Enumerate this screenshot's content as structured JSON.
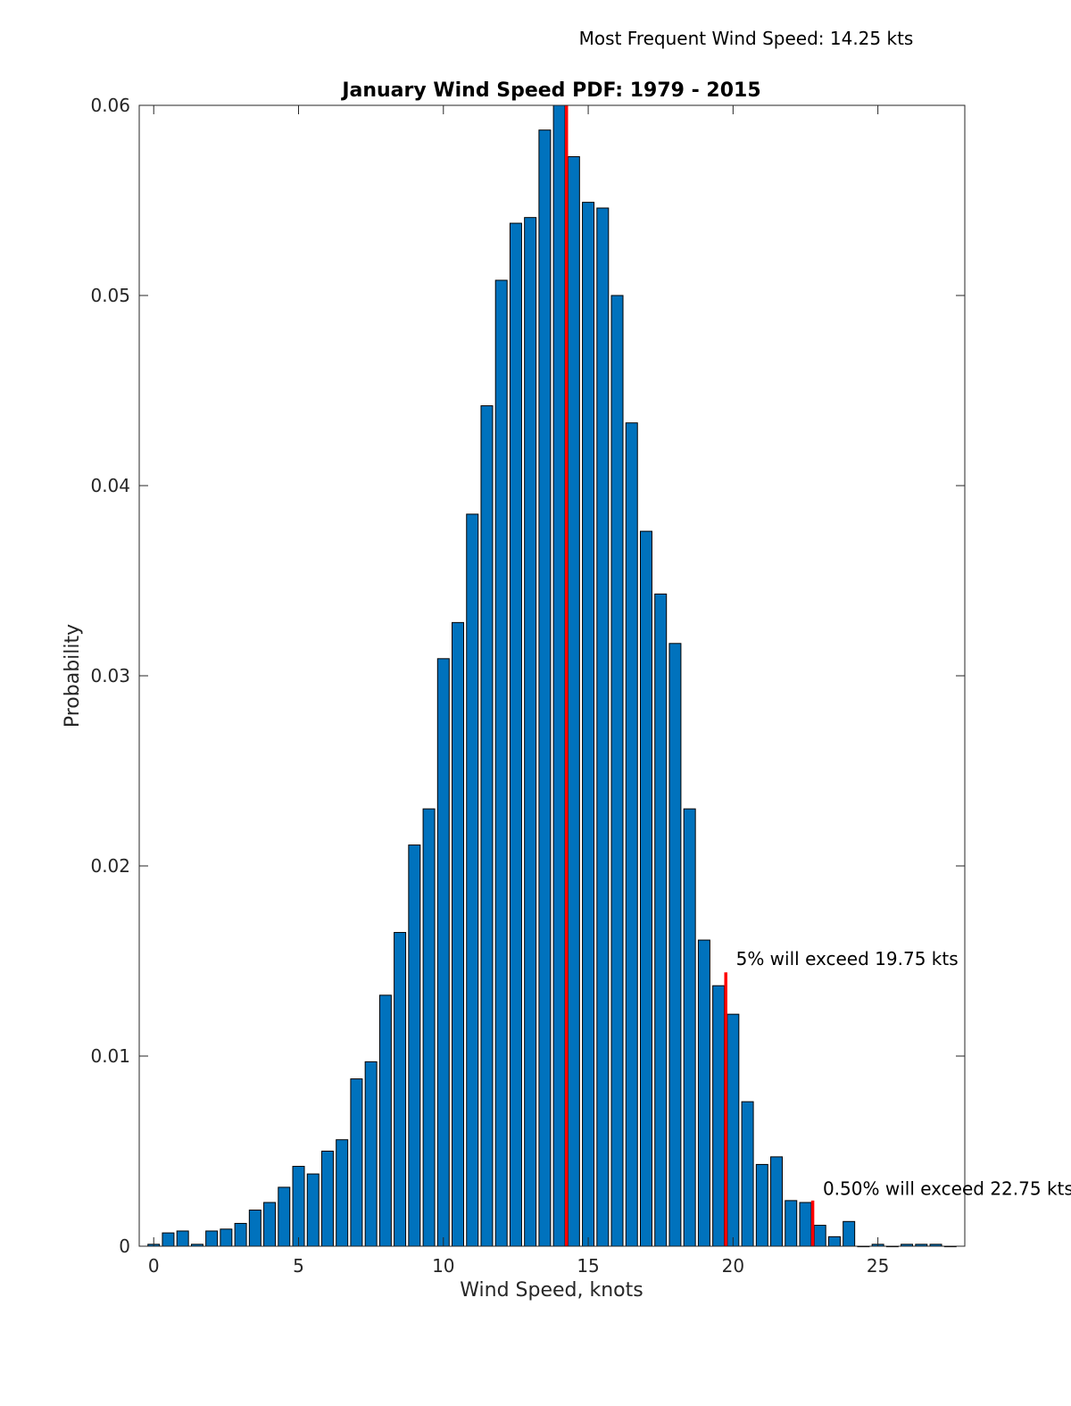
{
  "chart_data": {
    "type": "bar",
    "title": "January Wind Speed PDF: 1979 - 2015",
    "xlabel": "Wind Speed, knots",
    "ylabel": "Probability",
    "xlim": [
      -0.5,
      28
    ],
    "ylim": [
      0,
      0.06
    ],
    "xticks": [
      0,
      5,
      10,
      15,
      20,
      25
    ],
    "xtick_labels": [
      "0",
      "5",
      "10",
      "15",
      "20",
      "25"
    ],
    "yticks": [
      0,
      0.01,
      0.02,
      0.03,
      0.04,
      0.05,
      0.06
    ],
    "ytick_labels": [
      "0",
      "0.01",
      "0.02",
      "0.03",
      "0.04",
      "0.05",
      "0.06"
    ],
    "grid": false,
    "bar_color": "#0072BD",
    "line_color": "#FF0000",
    "x": [
      0,
      0.5,
      1,
      1.5,
      2,
      2.5,
      3,
      3.5,
      4,
      4.5,
      5,
      5.5,
      6,
      6.5,
      7,
      7.5,
      8,
      8.5,
      9,
      9.5,
      10,
      10.5,
      11,
      11.5,
      12,
      12.5,
      13,
      13.5,
      14,
      14.5,
      15,
      15.5,
      16,
      16.5,
      17,
      17.5,
      18,
      18.5,
      19,
      19.5,
      20,
      20.5,
      21,
      21.5,
      22,
      22.5,
      23,
      23.5,
      24,
      24.5,
      25,
      25.5,
      26,
      26.5,
      27,
      27.5
    ],
    "values": [
      0.0001,
      0.0007,
      0.0008,
      0.0001,
      0.0008,
      0.0009,
      0.0012,
      0.0019,
      0.0023,
      0.0031,
      0.0042,
      0.0038,
      0.005,
      0.0056,
      0.0088,
      0.0097,
      0.0132,
      0.0165,
      0.0211,
      0.023,
      0.0309,
      0.0328,
      0.0385,
      0.0442,
      0.0508,
      0.0538,
      0.0541,
      0.0587,
      0.06,
      0.0573,
      0.0549,
      0.0546,
      0.05,
      0.0433,
      0.0376,
      0.0343,
      0.0317,
      0.023,
      0.0161,
      0.0137,
      0.0122,
      0.0076,
      0.0043,
      0.0047,
      0.0024,
      0.0023,
      0.0011,
      0.0005,
      0.0013,
      0.0,
      0.0001,
      0.0,
      0.0001,
      0.0001,
      0.0001,
      0.0
    ],
    "reference_lines": [
      {
        "x": 14.25,
        "y_top": 0.06
      },
      {
        "x": 19.75,
        "y_top": 0.0144
      },
      {
        "x": 22.75,
        "y_top": 0.0024
      }
    ],
    "annotations": [
      {
        "text": "Most Frequent Wind Speed: 14.25 kts",
        "position": "above-plot-right"
      },
      {
        "text": "5% will exceed 19.75 kts",
        "x": 20.1,
        "y": 0.0148
      },
      {
        "text": "0.50% will exceed 22.75 kts",
        "x": 23.1,
        "y": 0.0027
      }
    ]
  }
}
